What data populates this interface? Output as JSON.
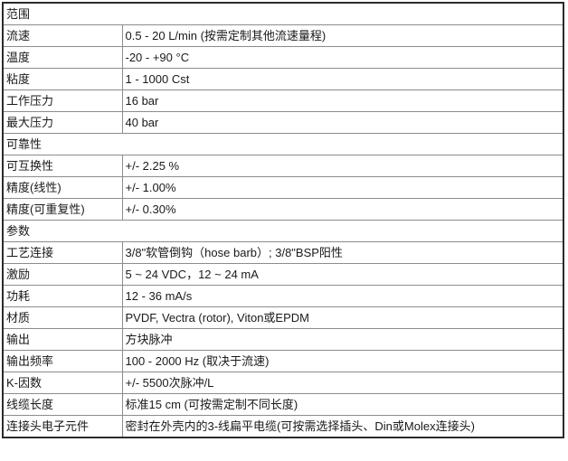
{
  "colors": {
    "background": "#ffffff",
    "text": "#1a1a1a",
    "grid_line": "#8c8c8c",
    "outer_border": "#2b2b2b"
  },
  "table": {
    "rows": [
      {
        "type": "section",
        "label": "范围"
      },
      {
        "type": "row",
        "label": "流速",
        "value": "0.5 - 20 L/min (按需定制其他流速量程)"
      },
      {
        "type": "row",
        "label": "温度",
        "value": "-20 - +90 °C"
      },
      {
        "type": "row",
        "label": "粘度",
        "value": "1 - 1000 Cst"
      },
      {
        "type": "row",
        "label": "工作压力",
        "value": "16 bar"
      },
      {
        "type": "row",
        "label": "最大压力",
        "value": "40 bar"
      },
      {
        "type": "section",
        "label": "可靠性"
      },
      {
        "type": "row",
        "label": "可互换性",
        "value": "+/- 2.25 %"
      },
      {
        "type": "row",
        "label": "精度(线性)",
        "value": "+/- 1.00%"
      },
      {
        "type": "row",
        "label": "精度(可重复性)",
        "value": "+/- 0.30%"
      },
      {
        "type": "section",
        "label": "参数"
      },
      {
        "type": "row",
        "label": "工艺连接",
        "value": "3/8\"软管倒钩（hose barb）; 3/8\"BSP阳性"
      },
      {
        "type": "row",
        "label": "激励",
        "value": "5 ~ 24 VDC，12 ~ 24 mA"
      },
      {
        "type": "row",
        "label": "功耗",
        "value": "12 - 36 mA/s"
      },
      {
        "type": "row",
        "label": "材质",
        "value": "PVDF, Vectra (rotor), Viton或EPDM"
      },
      {
        "type": "row",
        "label": "输出",
        "value": "方块脉冲"
      },
      {
        "type": "row",
        "label": "输出频率",
        "value": "100 - 2000 Hz (取决于流速)"
      },
      {
        "type": "row",
        "label": "K-因数",
        "value": "+/- 5500次脉冲/L"
      },
      {
        "type": "row",
        "label": "线缆长度",
        "value": "标准15 cm (可按需定制不同长度)"
      },
      {
        "type": "row",
        "label": "连接头电子元件",
        "value": "密封在外壳内的3-线扁平电缆(可按需选择插头、Din或Molex连接头)"
      }
    ]
  }
}
